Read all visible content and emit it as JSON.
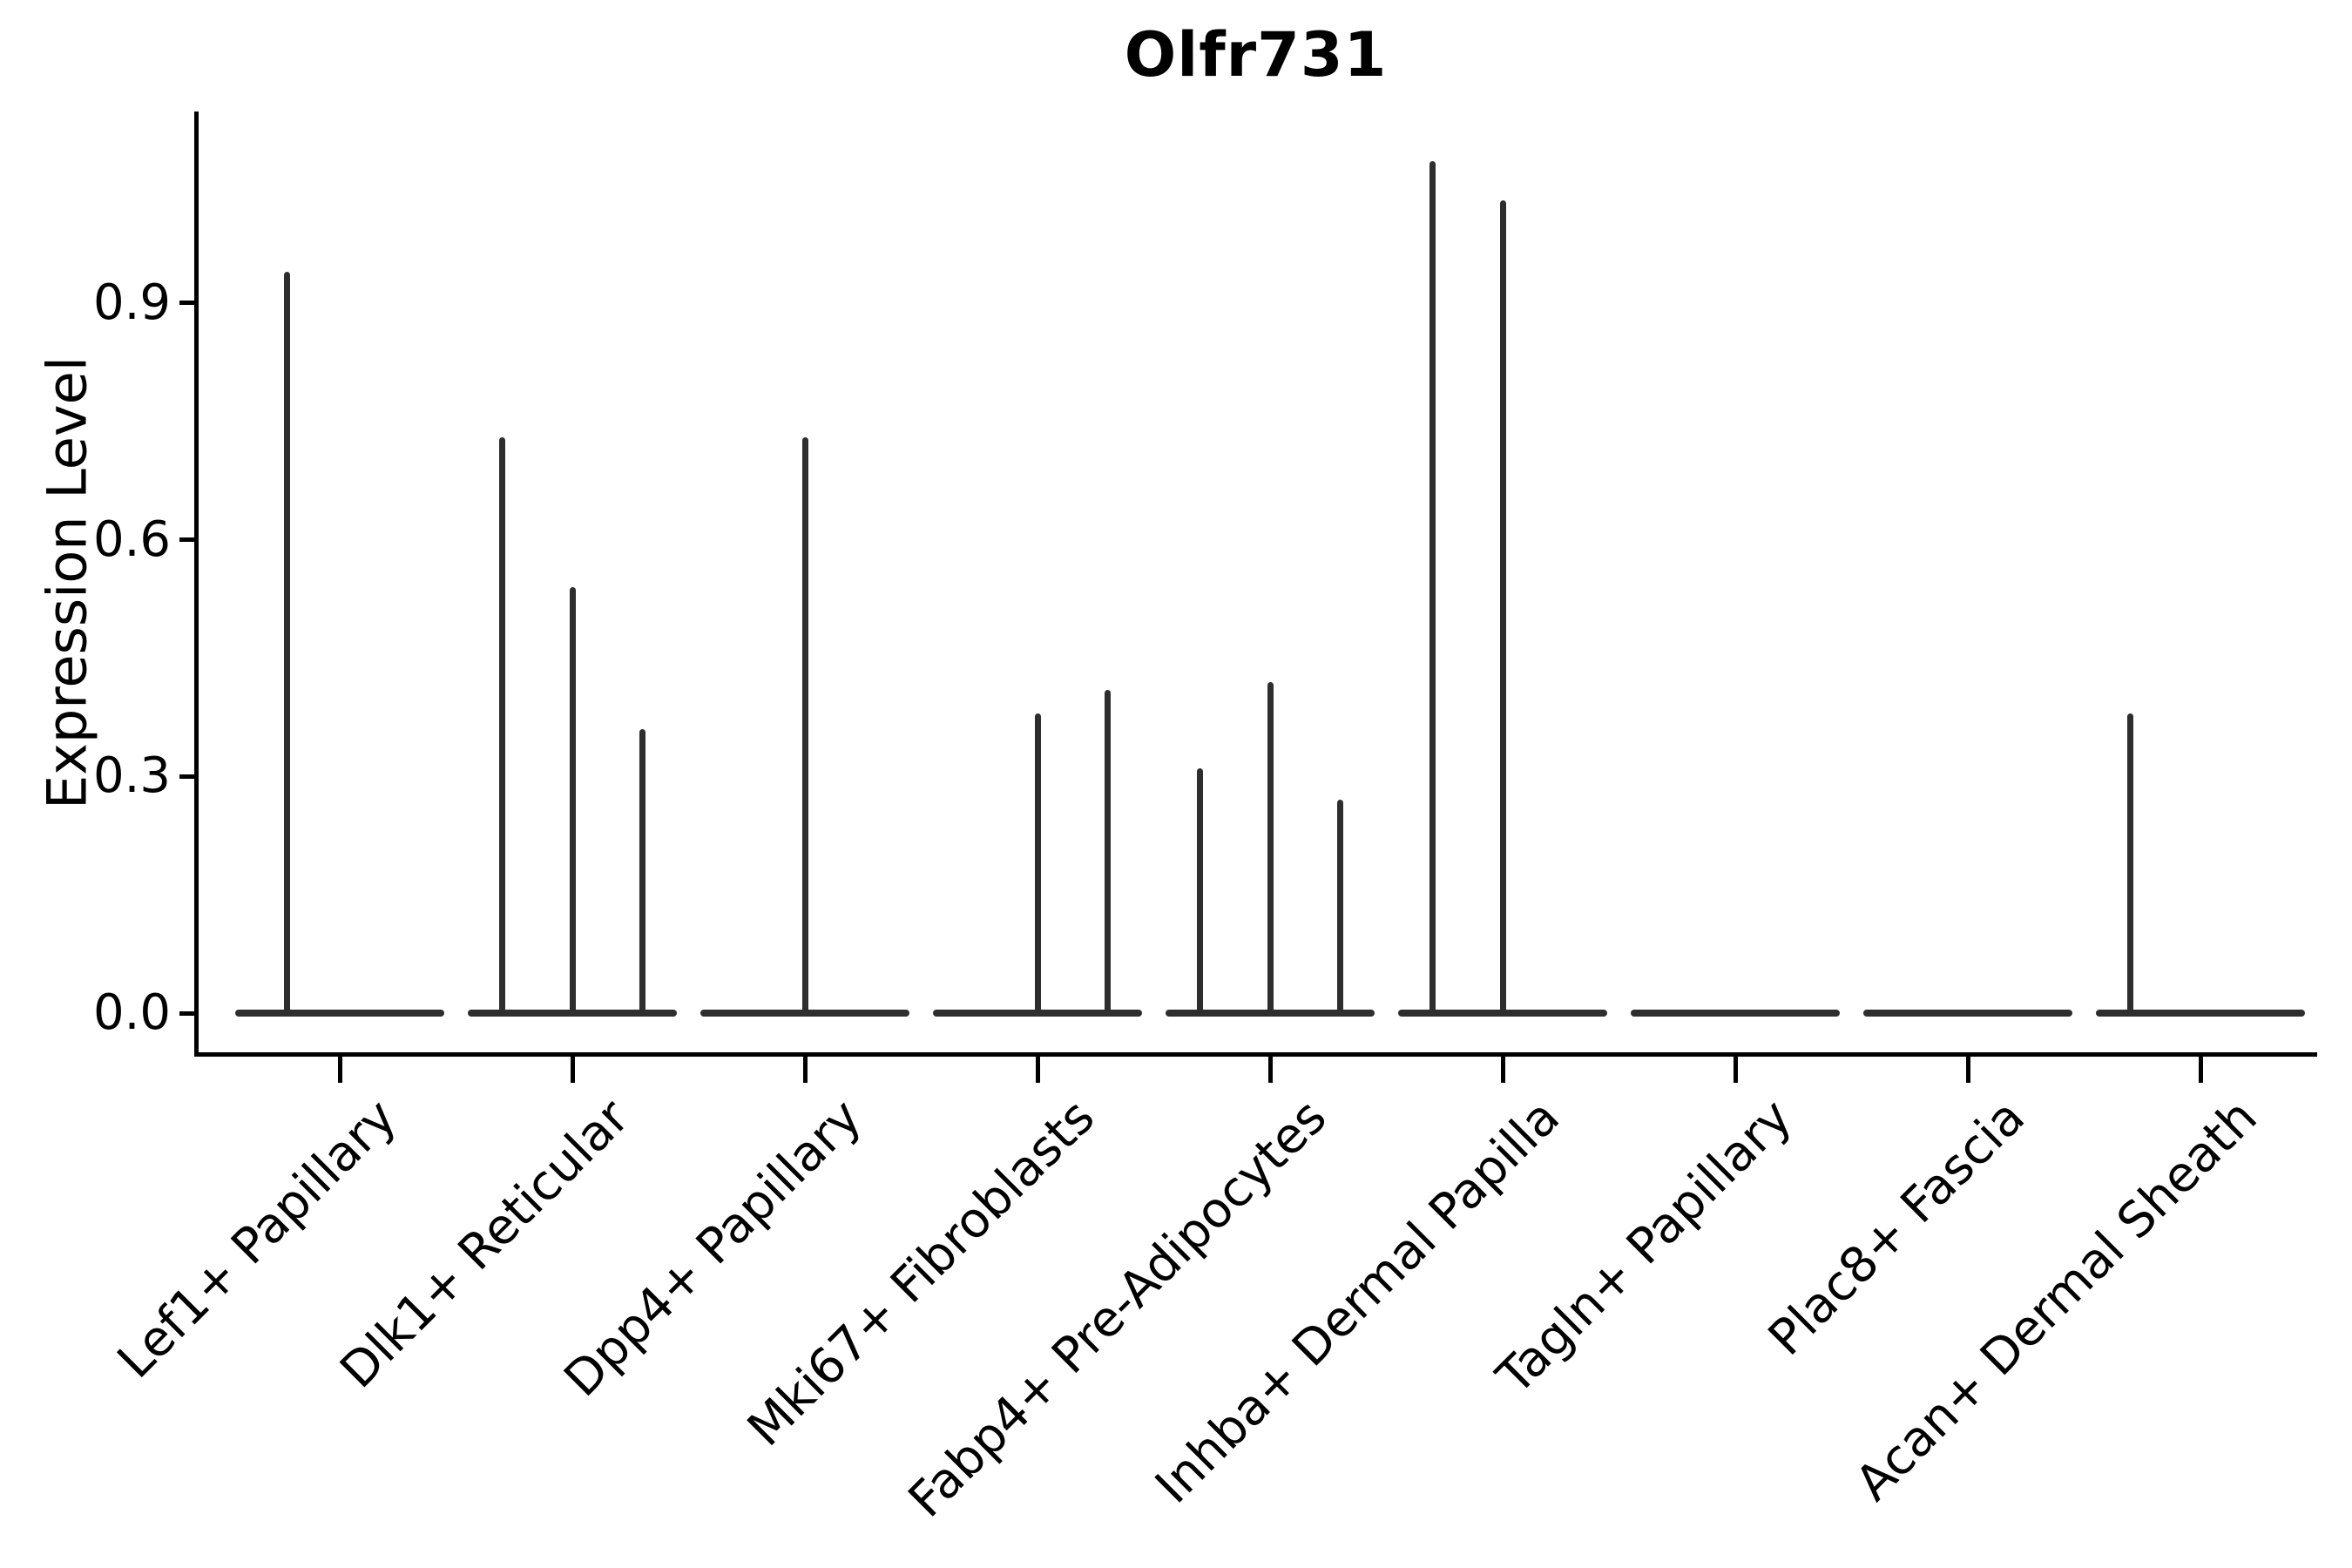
{
  "chart_data": {
    "type": "violin",
    "title": "Olfr731",
    "ylabel": "Expression Level",
    "xlabel": "",
    "legend": null,
    "grid": false,
    "background": "#ffffff",
    "colors": {
      "violin": "#2e2e2e",
      "axis": "#000000",
      "text": "#000000"
    },
    "ylim": [
      0,
      1.14
    ],
    "yticks": [
      {
        "label": "0.0",
        "value": 0.0
      },
      {
        "label": "0.3",
        "value": 0.3
      },
      {
        "label": "0.6",
        "value": 0.6
      },
      {
        "label": "0.9",
        "value": 0.9
      }
    ],
    "note": "Expression concentrated at 0 for all groups; thin vertical spikes mark the maximum expression of rare positive cells. Each category holds up to 3 sub-violin slots (pos = offset as fraction of category spacing).",
    "categories": [
      {
        "label": "Lef1+ Papillary",
        "spikes": [
          {
            "pos": -0.225,
            "peak": 0.94
          }
        ]
      },
      {
        "label": "Dlk1+ Reticular",
        "spikes": [
          {
            "pos": -0.3,
            "peak": 0.73
          },
          {
            "pos": 0,
            "peak": 0.54
          },
          {
            "pos": 0.3,
            "peak": 0.36
          }
        ]
      },
      {
        "label": "Dpp4+ Papillary",
        "spikes": [
          {
            "pos": 0,
            "peak": 0.73
          }
        ]
      },
      {
        "label": "Mki67+ Fibroblasts",
        "spikes": [
          {
            "pos": 0,
            "peak": 0.38
          },
          {
            "pos": 0.3,
            "peak": 0.41
          }
        ]
      },
      {
        "label": "Fabp4+ Pre-Adipocytes",
        "spikes": [
          {
            "pos": -0.3,
            "peak": 0.31
          },
          {
            "pos": 0,
            "peak": 0.42
          },
          {
            "pos": 0.3,
            "peak": 0.27
          }
        ]
      },
      {
        "label": "Inhba+ Dermal Papilla",
        "spikes": [
          {
            "pos": -0.3,
            "peak": 1.08
          },
          {
            "pos": 0,
            "peak": 1.03
          }
        ]
      },
      {
        "label": "Tagln+ Papillary",
        "spikes": []
      },
      {
        "label": "Plac8+ Fascia",
        "spikes": []
      },
      {
        "label": "Acan+ Dermal Sheath",
        "spikes": [
          {
            "pos": -0.3,
            "peak": 0.38
          }
        ]
      }
    ]
  }
}
